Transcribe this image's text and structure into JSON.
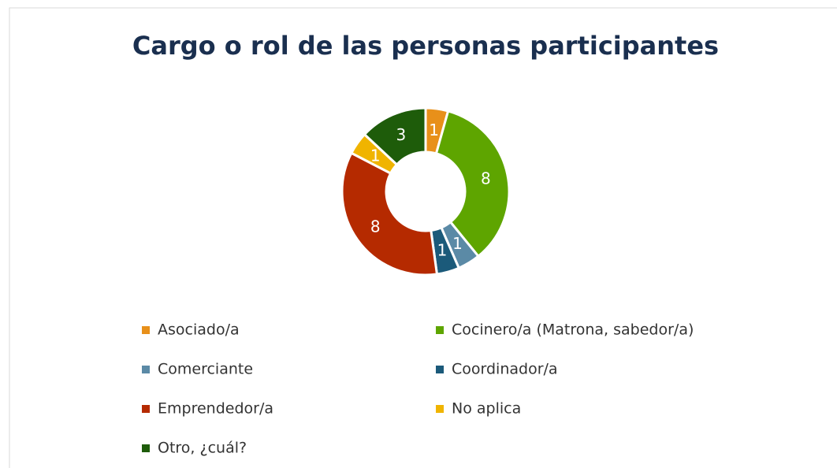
{
  "chart_data": {
    "type": "donut",
    "title": "Cargo o rol de las personas participantes",
    "categories": [
      "Asociado/a",
      "Cocinero/a (Matrona, sabedor/a)",
      "Comerciante",
      "Coordinador/a",
      "Emprendedor/a",
      "No aplica",
      "Otro, ¿cuál?"
    ],
    "values": [
      1,
      8,
      1,
      1,
      8,
      1,
      3
    ],
    "colors": [
      "#e8901a",
      "#5ea500",
      "#5b8aa6",
      "#1b5a7a",
      "#b52a00",
      "#f0b400",
      "#1e5c0a"
    ],
    "legend": "bottom"
  }
}
